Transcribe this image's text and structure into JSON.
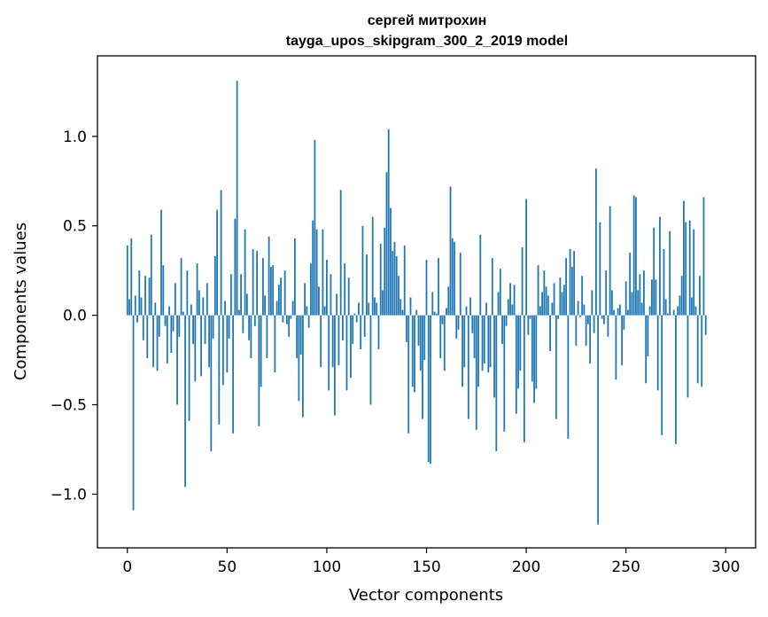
{
  "chart_data": {
    "type": "bar",
    "title": "сергей митрохин",
    "subtitle": "tayga_upos_skipgram_300_2_2019 model",
    "xlabel": "Vector components",
    "ylabel": "Components values",
    "xlim": [
      -15,
      315
    ],
    "ylim": [
      -1.3,
      1.45
    ],
    "xticks": [
      0,
      50,
      100,
      150,
      200,
      250,
      300
    ],
    "yticks": [
      -1.0,
      -0.5,
      0.0,
      0.5,
      1.0
    ],
    "ytick_labels": [
      "−1.0",
      "−0.5",
      "0.0",
      "0.5",
      "1.0"
    ],
    "grid": false,
    "bar_color": "#1f77b4",
    "values": [
      0.39,
      0.09,
      0.43,
      -1.09,
      0.11,
      -0.04,
      0.25,
      0.1,
      -0.14,
      0.22,
      -0.24,
      0.21,
      0.45,
      -0.29,
      0.07,
      -0.31,
      -0.12,
      0.59,
      0.28,
      -0.06,
      -0.27,
      0.05,
      -0.21,
      -0.09,
      0.18,
      -0.5,
      -0.12,
      0.32,
      0.02,
      -0.96,
      0.25,
      -0.59,
      0.06,
      -0.16,
      -0.37,
      0.29,
      0.14,
      -0.34,
      0.1,
      -0.16,
      0.18,
      -0.29,
      -0.76,
      -0.13,
      0.33,
      0.59,
      -0.61,
      0.7,
      -0.39,
      0.08,
      -0.32,
      -0.13,
      0.23,
      -0.66,
      0.54,
      1.31,
      0.03,
      0.23,
      -0.1,
      0.48,
      0.12,
      -0.14,
      -0.24,
      0.37,
      -0.06,
      0.36,
      -0.62,
      -0.4,
      0.32,
      0.11,
      -0.24,
      0.44,
      0.27,
      0.28,
      -0.32,
      0.08,
      0.17,
      0.21,
      -0.04,
      0.25,
      -0.05,
      -0.12,
      -0.02,
      0.08,
      0.43,
      -0.24,
      -0.48,
      -0.22,
      -0.57,
      0.18,
      0.05,
      -0.07,
      0.29,
      0.53,
      0.98,
      0.48,
      0.16,
      -0.29,
      0.48,
      0.05,
      0.31,
      -0.42,
      0.23,
      -0.29,
      -0.56,
      0.12,
      -0.28,
      0.7,
      -0.14,
      0.29,
      -0.42,
      0.21,
      -0.35,
      -0.16,
      0.01,
      -0.04,
      0.07,
      -0.19,
      0.5,
      -0.12,
      0.34,
      0.07,
      -0.5,
      0.55,
      0.1,
      0.07,
      -0.19,
      0.4,
      0.14,
      0.49,
      0.8,
      1.04,
      0.6,
      0.36,
      0.41,
      0.33,
      0.22,
      0.09,
      0.03,
      0.39,
      -0.15,
      -0.66,
      0.1,
      -0.4,
      -0.43,
      0.03,
      -0.17,
      -0.31,
      -0.58,
      -0.25,
      0.31,
      -0.82,
      -0.83,
      0.13,
      0.02,
      0.01,
      0.32,
      -0.24,
      -0.05,
      -0.31,
      0.04,
      0.16,
      0.72,
      0.43,
      0.41,
      -0.13,
      -0.08,
      0.35,
      -0.4,
      -0.29,
      0.05,
      -0.58,
      0.1,
      -0.1,
      -0.24,
      -0.64,
      -0.4,
      0.45,
      -0.31,
      -0.27,
      0.07,
      -0.32,
      -0.29,
      0.32,
      -0.46,
      -0.76,
      0.13,
      0.26,
      -0.16,
      -0.65,
      -0.06,
      0.09,
      0.18,
      0.06,
      0.17,
      -0.55,
      -0.41,
      -0.31,
      0.38,
      -0.71,
      0.65,
      -0.11,
      -0.02,
      -0.37,
      -0.49,
      -0.41,
      0.28,
      0.05,
      0.13,
      0.25,
      0.16,
      0.11,
      -0.2,
      0.07,
      0.18,
      -0.58,
      -0.02,
      0.21,
      0.13,
      0.17,
      0.32,
      -0.69,
      0.37,
      0.27,
      0.36,
      -0.17,
      0.08,
      -0.01,
      0.22,
      0.06,
      -0.17,
      -0.05,
      -0.27,
      0.14,
      -0.1,
      0.82,
      -1.17,
      0.52,
      -0.02,
      -0.05,
      0.25,
      -0.12,
      0.61,
      0.14,
      0.03,
      -0.36,
      0.04,
      0.06,
      -0.28,
      -0.08,
      0.19,
      0.03,
      0.35,
      0.13,
      0.67,
      0.66,
      0.14,
      0.23,
      0.07,
      0.25,
      -0.38,
      -0.23,
      0.05,
      0.2,
      0.49,
      0.2,
      -0.42,
      0.55,
      -0.67,
      0.37,
      0.09,
      0.01,
      0.47,
      0.0,
      0.03,
      -0.72,
      0.05,
      0.11,
      0.22,
      0.64,
      0.52,
      -0.46,
      0.53,
      0.1,
      0.48,
      0.05,
      -0.38,
      0.22,
      -0.4,
      0.66,
      -0.11
    ]
  }
}
